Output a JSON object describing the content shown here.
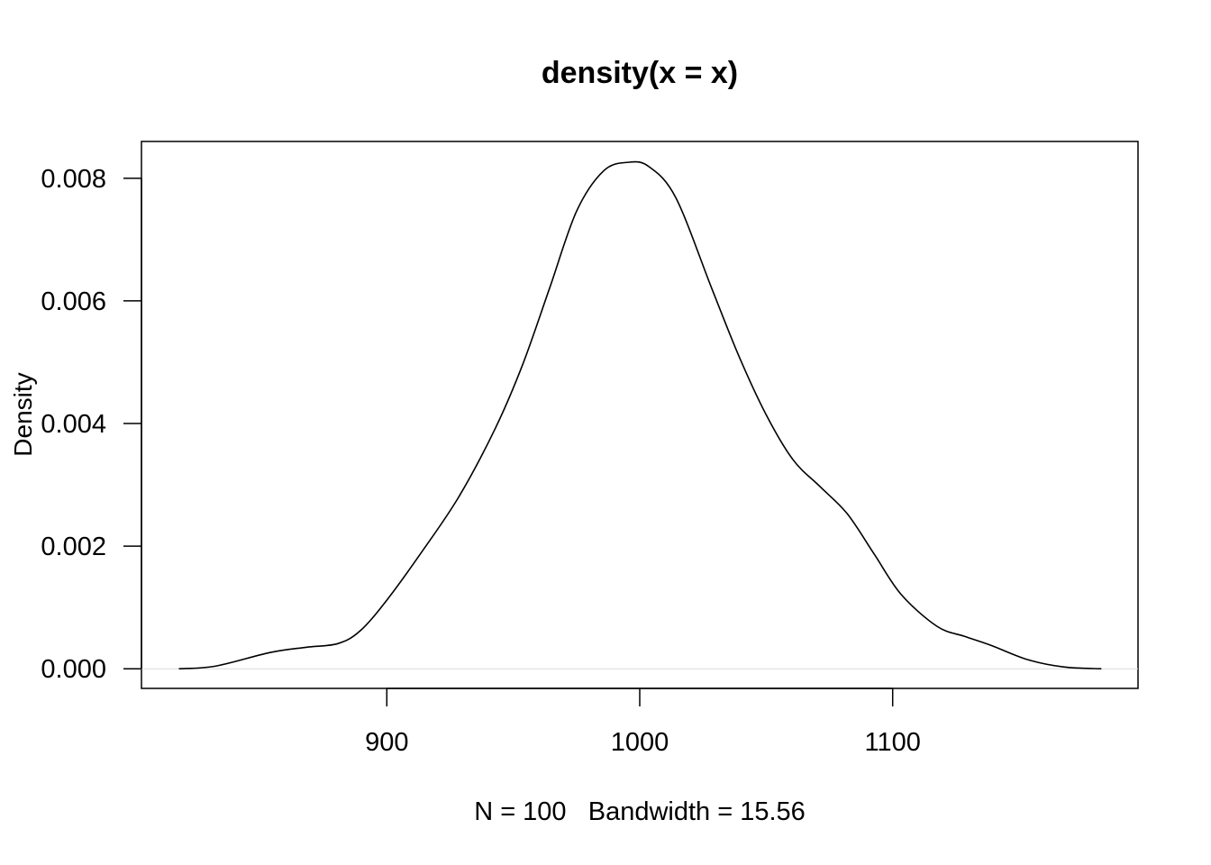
{
  "chart_data": {
    "type": "line",
    "title": "density(x = x)",
    "xlabel": "N = 100   Bandwidth = 15.56",
    "ylabel": "Density",
    "xlim": [
      803,
      1197
    ],
    "ylim": [
      -0.00032,
      0.0086
    ],
    "xticks": [
      900,
      1000,
      1100
    ],
    "xtick_labels": [
      "900",
      "1000",
      "1100"
    ],
    "yticks": [
      0,
      0.002,
      0.004,
      0.006,
      0.008
    ],
    "ytick_labels": [
      "0.000",
      "0.002",
      "0.004",
      "0.006",
      "0.008"
    ],
    "grid": false,
    "zero_line_color": "#d9d9d9",
    "line_color": "#000000",
    "series": [
      {
        "name": "density",
        "x": [
          817.8,
          832.4,
          853.8,
          868,
          880.6,
          889.5,
          900.2,
          914.4,
          928.7,
          943,
          953.7,
          964.3,
          975,
          985.7,
          995.4,
          1003.6,
          1014.3,
          1028.5,
          1039.2,
          1049.9,
          1060.6,
          1071.3,
          1082,
          1092.7,
          1103.4,
          1117.6,
          1128.3,
          1139,
          1153.3,
          1167.6,
          1182.5
        ],
        "y": [
          0,
          4.4e-05,
          0.000265,
          0.00035,
          0.00041,
          0.00062,
          0.00113,
          0.00194,
          0.00282,
          0.00393,
          0.00496,
          0.0062,
          0.00746,
          0.00812,
          0.00826,
          0.00819,
          0.00768,
          0.0062,
          0.0051,
          0.00415,
          0.00341,
          0.00297,
          0.00253,
          0.00187,
          0.00121,
          0.00069,
          0.00053,
          0.00038,
          0.00015,
          3e-05,
          0
        ]
      }
    ]
  }
}
